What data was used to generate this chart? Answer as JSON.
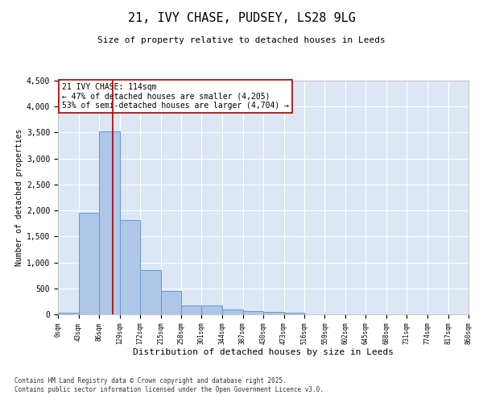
{
  "title": "21, IVY CHASE, PUDSEY, LS28 9LG",
  "subtitle": "Size of property relative to detached houses in Leeds",
  "xlabel": "Distribution of detached houses by size in Leeds",
  "ylabel": "Number of detached properties",
  "bar_color": "#aec6e8",
  "bar_edge_color": "#5b9bd5",
  "background_color": "#dce6f5",
  "annotation_box_text": "21 IVY CHASE: 114sqm\n← 47% of detached houses are smaller (4,205)\n53% of semi-detached houses are larger (4,704) →",
  "vline_x": 114,
  "vline_color": "#aa0000",
  "footnote": "Contains HM Land Registry data © Crown copyright and database right 2025.\nContains public sector information licensed under the Open Government Licence v3.0.",
  "bin_edges": [
    0,
    43,
    86,
    129,
    172,
    215,
    258,
    301,
    344,
    387,
    430,
    473,
    516,
    559,
    602,
    645,
    688,
    731,
    774,
    817,
    860
  ],
  "bar_heights": [
    30,
    1950,
    3530,
    1810,
    855,
    455,
    175,
    175,
    95,
    65,
    40,
    35,
    0,
    0,
    0,
    0,
    0,
    0,
    0,
    0
  ],
  "ylim": [
    0,
    4500
  ],
  "yticks": [
    0,
    500,
    1000,
    1500,
    2000,
    2500,
    3000,
    3500,
    4000,
    4500
  ],
  "figsize": [
    6.0,
    5.0
  ],
  "dpi": 100
}
